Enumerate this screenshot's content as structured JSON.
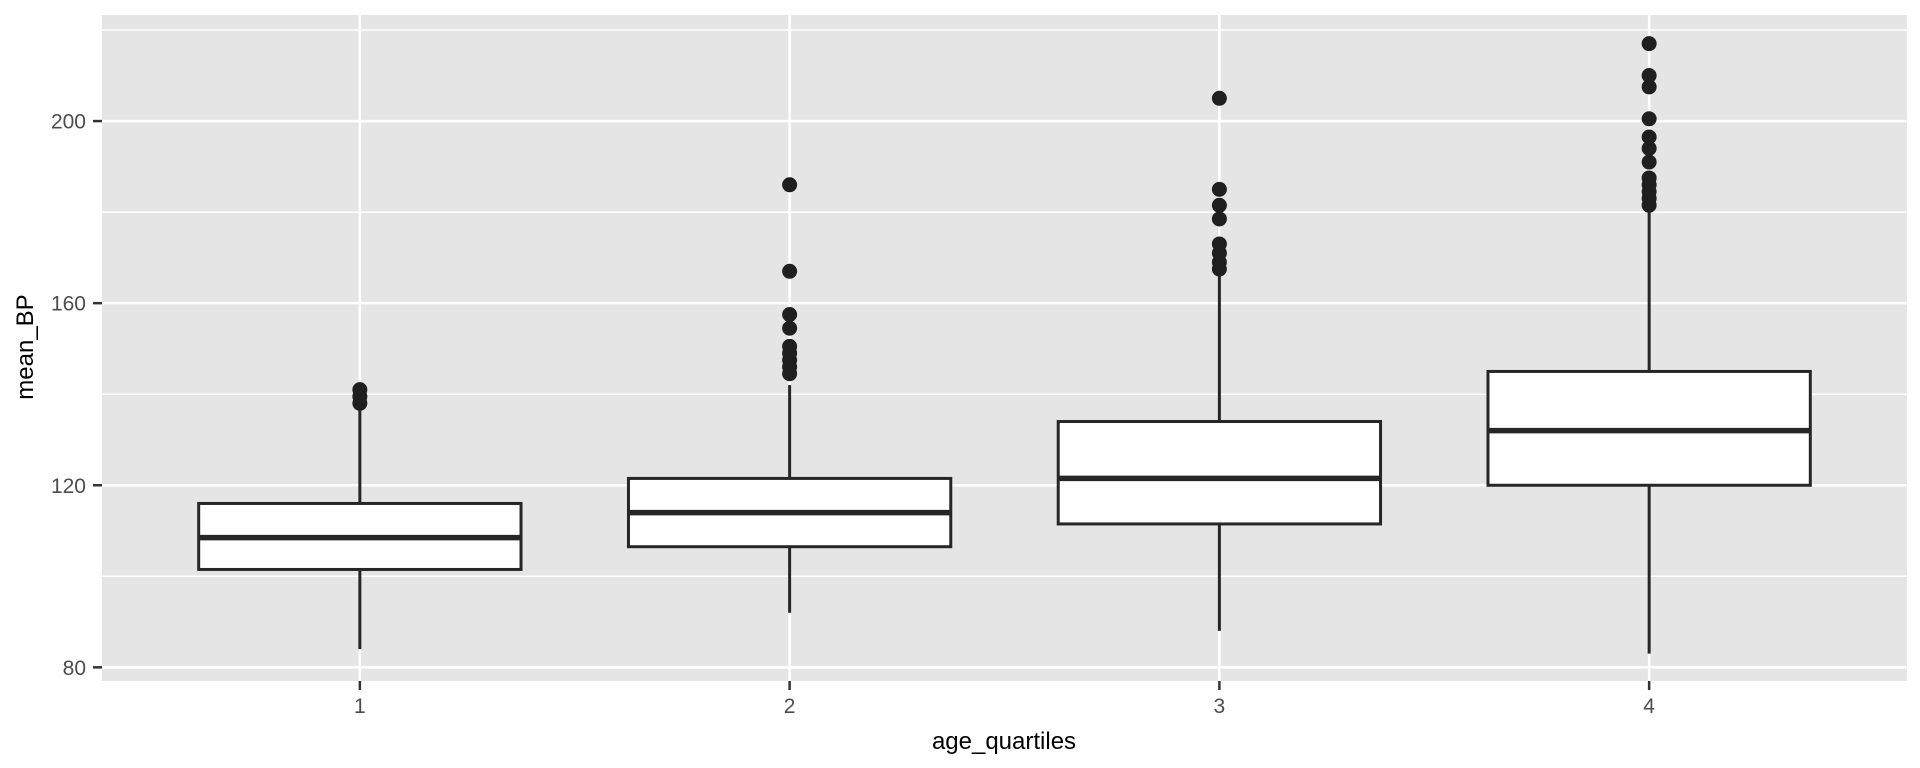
{
  "chart_data": {
    "type": "boxplot",
    "title": "",
    "xlabel": "age_quartiles",
    "ylabel": "mean_BP",
    "categories": [
      "1",
      "2",
      "3",
      "4"
    ],
    "y_tick_labels": [
      "80",
      "120",
      "160",
      "200"
    ],
    "y_major_breaks": [
      80,
      120,
      160,
      200
    ],
    "y_minor_breaks": [
      100,
      140,
      180,
      220
    ],
    "ylim": [
      77,
      223.3
    ],
    "x_domain": [
      0.4,
      4.6
    ],
    "box_width": 0.75,
    "grid": "on",
    "legend": "none",
    "series": [
      {
        "category": "1",
        "whisker_low": 84,
        "q1": 101.5,
        "median": 108.5,
        "q3": 116,
        "whisker_high": 136.5,
        "outliers": [
          138,
          139.5,
          141
        ]
      },
      {
        "category": "2",
        "whisker_low": 92,
        "q1": 106.5,
        "median": 114,
        "q3": 121.5,
        "whisker_high": 142,
        "outliers": [
          144.5,
          146,
          147.5,
          149,
          150.5,
          154.5,
          157.5,
          167,
          186
        ]
      },
      {
        "category": "3",
        "whisker_low": 88,
        "q1": 111.5,
        "median": 121.5,
        "q3": 134,
        "whisker_high": 166,
        "outliers": [
          167.5,
          169,
          171,
          173,
          178.5,
          181.5,
          185,
          205
        ]
      },
      {
        "category": "4",
        "whisker_low": 83,
        "q1": 120,
        "median": 132,
        "q3": 145,
        "whisker_high": 180.5,
        "outliers": [
          181.5,
          183,
          184.5,
          186,
          187.5,
          191,
          194,
          196.5,
          200.5,
          207.5,
          210,
          217
        ]
      }
    ],
    "colors": {
      "panel_bg": "#E5E5E5",
      "grid": "#FFFFFF",
      "box_fill": "#FFFFFF",
      "box_stroke": "#262626",
      "outlier": "#1F1F1F",
      "tick_mark": "#333333",
      "tick_label": "#4D4D4D",
      "axis_title": "#000000"
    }
  }
}
